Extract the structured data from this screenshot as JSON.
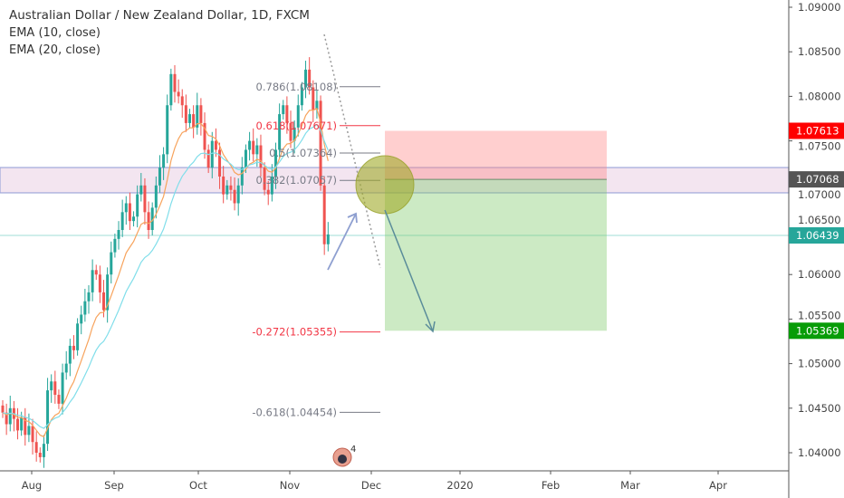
{
  "legend": {
    "title": "Australian Dollar / New Zealand Dollar, 1D, FXCM",
    "ema10": "EMA (10, close)",
    "ema20": "EMA (20, close)"
  },
  "chart_data": {
    "type": "candlestick",
    "ylim": [
      1.0385,
      1.0912
    ],
    "y_ticks": [
      "1.09000",
      "1.08500",
      "1.08000",
      "1.07500",
      "1.07000",
      "1.06500",
      "1.06000",
      "1.05500",
      "1.05000",
      "1.04500",
      "1.04000"
    ],
    "x_ticks": [
      "Aug",
      "Sep",
      "Oct",
      "Nov",
      "Dec",
      "2020",
      "Feb",
      "Mar",
      "Apr"
    ],
    "closes": [
      1.0445,
      1.0432,
      1.045,
      1.0438,
      1.0425,
      1.044,
      1.042,
      1.043,
      1.0412,
      1.04,
      1.0395,
      1.041,
      1.047,
      1.048,
      1.0465,
      1.0455,
      1.049,
      1.05,
      1.052,
      1.0515,
      1.0545,
      1.0555,
      1.057,
      1.058,
      1.0605,
      1.06,
      1.058,
      1.056,
      1.06,
      1.0625,
      1.064,
      1.065,
      1.067,
      1.068,
      1.066,
      1.0665,
      1.069,
      1.07,
      1.067,
      1.065,
      1.0675,
      1.07,
      1.072,
      1.0735,
      1.079,
      1.0825,
      1.0805,
      1.08,
      1.079,
      1.077,
      1.078,
      1.0765,
      1.079,
      1.077,
      1.074,
      1.072,
      1.075,
      1.074,
      1.071,
      1.069,
      1.07,
      1.0695,
      1.068,
      1.07,
      1.072,
      1.074,
      1.075,
      1.0735,
      1.0745,
      1.072,
      1.0695,
      1.069,
      1.071,
      1.074,
      1.078,
      1.079,
      1.077,
      1.075,
      1.0765,
      1.079,
      1.081,
      1.083,
      1.081,
      1.0785,
      1.0795,
      1.07,
      1.0634,
      1.0645
    ],
    "indicators": [
      "EMA 10",
      "EMA 20"
    ],
    "price_tags": [
      {
        "label": "1.07613",
        "value": 1.07613,
        "color": "#ff0000"
      },
      {
        "label": "1.07068",
        "value": 1.07068,
        "color": "#555555"
      },
      {
        "label": "1.06439",
        "value": 1.06439,
        "color": "#26a69a"
      },
      {
        "label": "1.05369",
        "value": 1.05369,
        "color": "#089c08"
      }
    ],
    "fib_levels": [
      {
        "label": "0.786(1.08108)",
        "value": 1.08108,
        "color": "#787b86"
      },
      {
        "label": "0.618(1.07671)",
        "value": 1.07671,
        "color": "#f23645"
      },
      {
        "label": "0.5(1.07364)",
        "value": 1.07364,
        "color": "#787b86"
      },
      {
        "label": "0.382(1.07057)",
        "value": 1.07057,
        "color": "#787b86"
      },
      {
        "label": "-0.272(1.05355)",
        "value": 1.05355,
        "color": "#f23645"
      },
      {
        "label": "-0.618(1.04454)",
        "value": 1.04454,
        "color": "#787b86"
      }
    ],
    "zone": {
      "top": 1.07201,
      "bottom": 1.06917
    },
    "support_line": 1.06439,
    "position": {
      "stop": 1.07613,
      "entry": 1.07068,
      "target": 1.05369
    },
    "colors": {
      "up": "#26a69a",
      "down": "#ef5350",
      "ema10": "#f7a35c",
      "ema20": "#80deea"
    }
  },
  "events": {
    "count": "4"
  }
}
